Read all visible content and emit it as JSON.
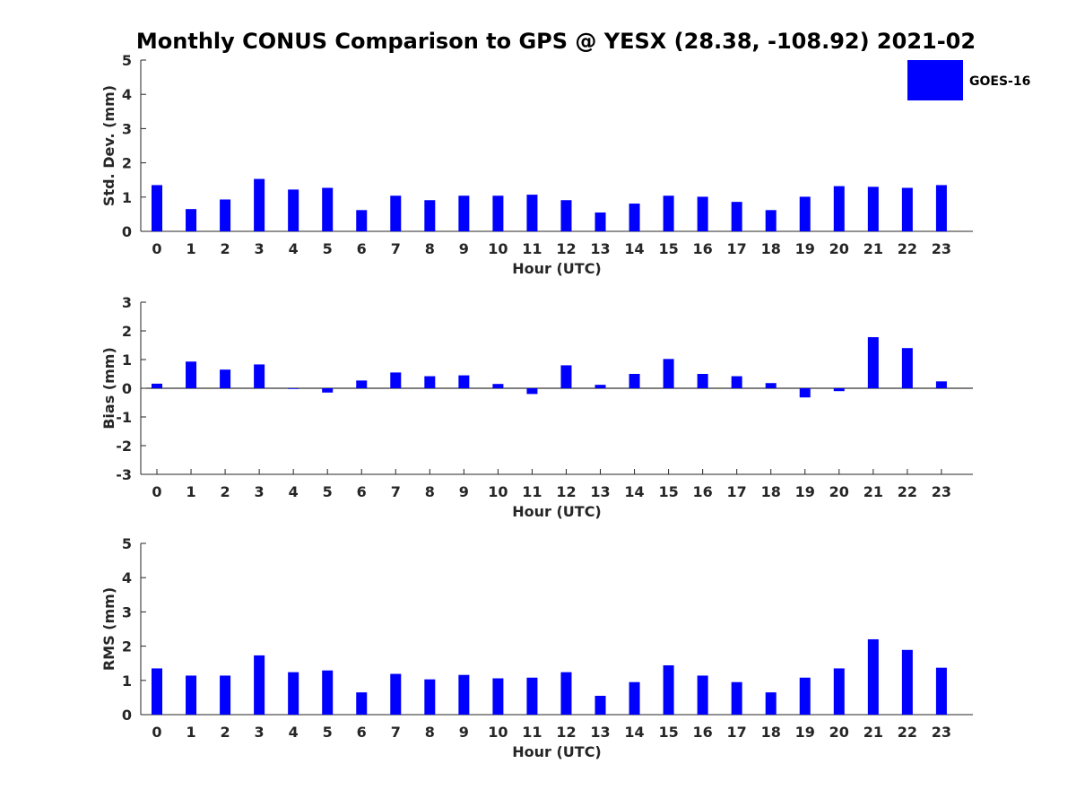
{
  "chart_data": {
    "type": "bar",
    "title": "Monthly CONUS Comparison to GPS @ YESX (28.38, -108.92) 2021-02",
    "legend": {
      "entries": [
        "GOES-16"
      ],
      "placement": "top-right"
    },
    "colors": {
      "bar": "#0000ff",
      "axis": "#262626",
      "zero_line": "#000000"
    },
    "categories": [
      "0",
      "1",
      "2",
      "3",
      "4",
      "5",
      "6",
      "7",
      "8",
      "9",
      "10",
      "11",
      "12",
      "13",
      "14",
      "15",
      "16",
      "17",
      "18",
      "19",
      "20",
      "21",
      "22",
      "23"
    ],
    "panels": [
      {
        "name": "std-dev",
        "ylabel": "Std. Dev. (mm)",
        "xlabel": "Hour (UTC)",
        "ylim": [
          0,
          5
        ],
        "yticks": [
          0,
          1,
          2,
          3,
          4,
          5
        ],
        "series": [
          {
            "name": "GOES-16",
            "values": [
              1.35,
              0.65,
              0.93,
              1.53,
              1.22,
              1.27,
              0.62,
              1.04,
              0.91,
              1.04,
              1.04,
              1.07,
              0.91,
              0.55,
              0.81,
              1.04,
              1.01,
              0.86,
              0.62,
              1.01,
              1.32,
              1.3,
              1.27,
              1.35
            ]
          }
        ]
      },
      {
        "name": "bias",
        "ylabel": "Bias (mm)",
        "xlabel": "Hour (UTC)",
        "ylim": [
          -3,
          3
        ],
        "yticks": [
          -3,
          -2,
          -1,
          0,
          1,
          2,
          3
        ],
        "series": [
          {
            "name": "GOES-16",
            "values": [
              0.16,
              0.93,
              0.65,
              0.83,
              0.0,
              -0.15,
              0.27,
              0.55,
              0.42,
              0.45,
              0.15,
              -0.2,
              0.8,
              0.12,
              0.5,
              1.02,
              0.5,
              0.42,
              0.18,
              -0.32,
              -0.1,
              1.78,
              1.4,
              0.24
            ]
          }
        ]
      },
      {
        "name": "rms",
        "ylabel": "RMS (mm)",
        "xlabel": "Hour (UTC)",
        "ylim": [
          0,
          5
        ],
        "yticks": [
          0,
          1,
          2,
          3,
          4,
          5
        ],
        "series": [
          {
            "name": "GOES-16",
            "values": [
              1.35,
              1.14,
              1.14,
              1.73,
              1.24,
              1.29,
              0.65,
              1.19,
              1.03,
              1.16,
              1.06,
              1.08,
              1.24,
              0.55,
              0.95,
              1.44,
              1.14,
              0.95,
              0.65,
              1.08,
              1.35,
              2.2,
              1.89,
              1.37
            ]
          }
        ]
      }
    ]
  }
}
